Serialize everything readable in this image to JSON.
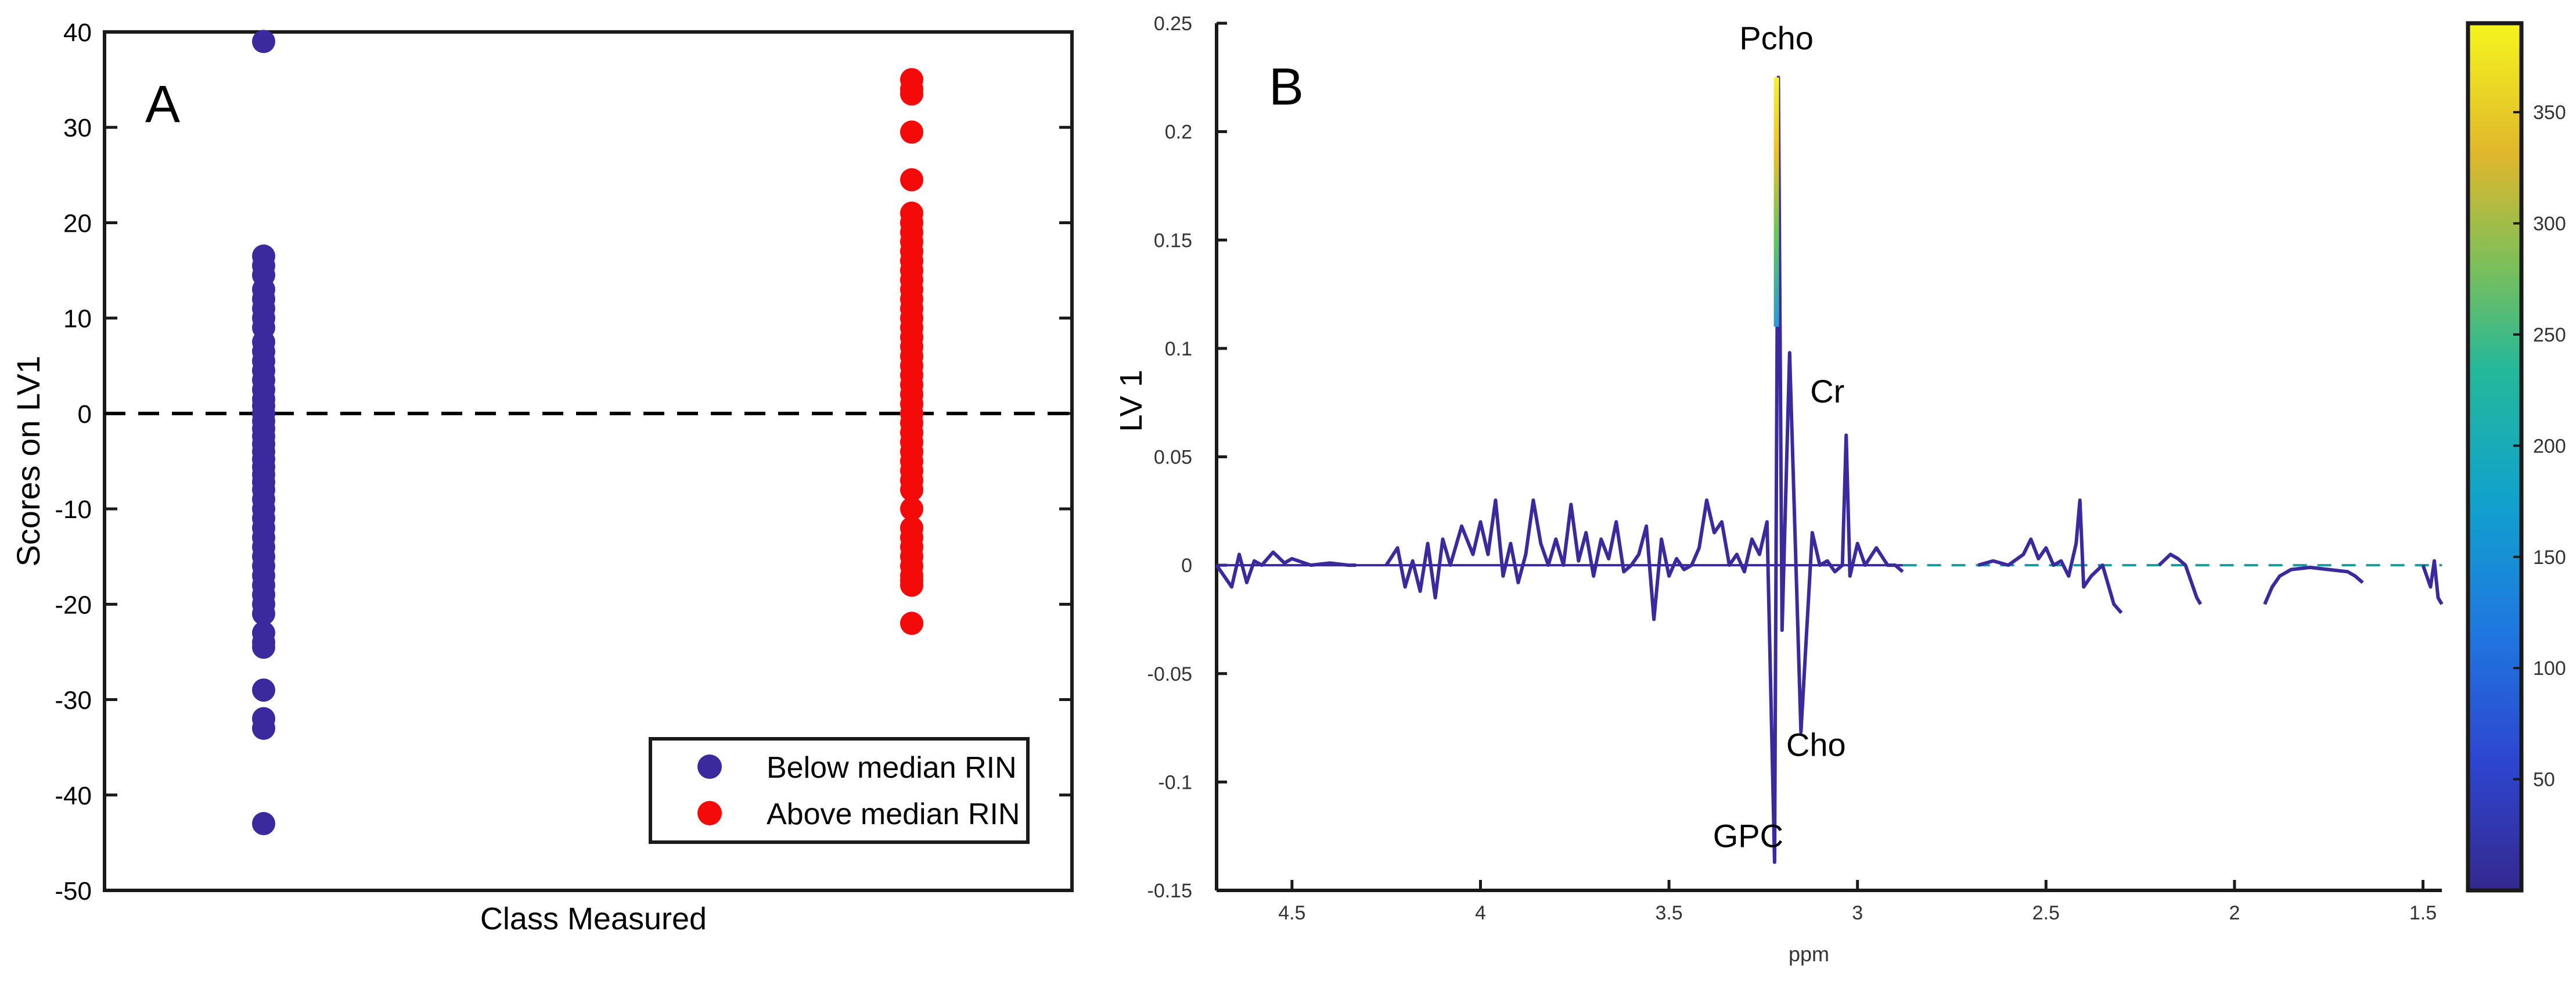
{
  "figure": {
    "panels": [
      "A",
      "B"
    ]
  },
  "chart_data": [
    {
      "type": "scatter",
      "panel_label": "A",
      "title": "",
      "xlabel": "Class Measured",
      "ylabel": "Scores on LV1",
      "ylim": [
        -50,
        40
      ],
      "yticks": [
        40,
        30,
        20,
        10,
        0,
        -10,
        -20,
        -30,
        -40,
        -50
      ],
      "xticks": [],
      "reference_line": {
        "y": 0,
        "style": "dashed"
      },
      "legend_position": "bottom-right",
      "series": [
        {
          "name": "Below median RIN",
          "color": "#3a2a9e",
          "x_category": 1,
          "values": [
            39,
            16.5,
            15.5,
            14.5,
            13,
            12,
            11,
            10,
            9,
            7.5,
            6.5,
            5.5,
            4.5,
            3.5,
            2.5,
            1.5,
            0.8,
            0,
            -0.8,
            -1.6,
            -2.4,
            -3.2,
            -4,
            -4.8,
            -5.6,
            -6.4,
            -7.2,
            -8,
            -9,
            -10,
            -11,
            -12,
            -13,
            -14,
            -15,
            -16,
            -17,
            -18,
            -19,
            -20,
            -21,
            -23,
            -24,
            -24.5,
            -29,
            -32,
            -33,
            -43
          ]
        },
        {
          "name": "Above median RIN",
          "color": "#f50a0a",
          "x_category": 2,
          "values": [
            35,
            34,
            33.5,
            29.5,
            24.5,
            21,
            20,
            19,
            18,
            17,
            16,
            15,
            14,
            13,
            12,
            11,
            10,
            9,
            8,
            7,
            6,
            5,
            4,
            3,
            2,
            1,
            0,
            -1,
            -2,
            -3,
            -4,
            -5,
            -6,
            -7,
            -8,
            -10,
            -12,
            -13,
            -14,
            -15,
            -16,
            -17,
            -17.5,
            -18,
            -22
          ]
        }
      ]
    },
    {
      "type": "line",
      "panel_label": "B",
      "title": "",
      "xlabel": "ppm",
      "ylabel": "LV 1",
      "xlim": [
        4.7,
        1.45
      ],
      "x_reversed": true,
      "ylim": [
        -0.15,
        0.25
      ],
      "xticks": [
        4.5,
        4,
        3.5,
        3,
        2.5,
        2,
        1.5
      ],
      "xtick_labels": [
        "4.5",
        "4",
        "3.5",
        "3",
        "2.5",
        "2",
        "1.5"
      ],
      "yticks": [
        0.25,
        0.2,
        0.15,
        0.1,
        0.05,
        0,
        -0.05,
        -0.1,
        -0.15
      ],
      "ytick_labels": [
        "0.25",
        "0.2",
        "0.15",
        "0.1",
        "0.05",
        "0",
        "-0.05",
        "-0.1",
        "-0.15"
      ],
      "line_color": "#3a2a9e",
      "baseline": {
        "y": 0,
        "colors": [
          "#3a2a9e",
          "#1a9a9a"
        ]
      },
      "series": [
        {
          "name": "seg1",
          "x": [
            4.7,
            4.66,
            4.64,
            4.62,
            4.6,
            4.58,
            4.55,
            4.52,
            4.5,
            4.45,
            4.4,
            4.35,
            4.33
          ],
          "y": [
            0.0,
            -0.01,
            0.005,
            -0.008,
            0.002,
            0.0,
            0.006,
            0.001,
            0.003,
            0.0,
            0.001,
            0.0,
            0.0
          ]
        },
        {
          "name": "seg2",
          "x": [
            4.25,
            4.22,
            4.2,
            4.18,
            4.16,
            4.14,
            4.12,
            4.1,
            4.08,
            4.05,
            4.02,
            4.0,
            3.98,
            3.96,
            3.94,
            3.92,
            3.9,
            3.88,
            3.86,
            3.84,
            3.82,
            3.8,
            3.78,
            3.76,
            3.74,
            3.72,
            3.7,
            3.68,
            3.66,
            3.64,
            3.62,
            3.6,
            3.58,
            3.56,
            3.54,
            3.52,
            3.5,
            3.48,
            3.46,
            3.44,
            3.42,
            3.4,
            3.38,
            3.36,
            3.34,
            3.32,
            3.3,
            3.28,
            3.26,
            3.24,
            3.22,
            3.21,
            3.2,
            3.18,
            3.15,
            3.12,
            3.1,
            3.08,
            3.06,
            3.04,
            3.03,
            3.02,
            3.0,
            2.98,
            2.95,
            2.92,
            2.9,
            2.88
          ],
          "y": [
            0.0,
            0.008,
            -0.01,
            0.002,
            -0.012,
            0.01,
            -0.015,
            0.012,
            0.0,
            0.018,
            0.005,
            0.02,
            0.005,
            0.03,
            -0.005,
            0.01,
            -0.008,
            0.005,
            0.03,
            0.01,
            0.0,
            0.012,
            0.0,
            0.028,
            0.002,
            0.015,
            -0.005,
            0.012,
            0.003,
            0.02,
            -0.003,
            0.0,
            0.005,
            0.018,
            -0.025,
            0.012,
            -0.005,
            0.003,
            -0.002,
            0.0,
            0.008,
            0.03,
            0.015,
            0.02,
            0.0,
            0.005,
            -0.003,
            0.012,
            0.005,
            0.02,
            -0.137,
            0.225,
            -0.03,
            0.098,
            -0.077,
            0.015,
            0.0,
            0.002,
            -0.003,
            0.0,
            0.06,
            -0.005,
            0.01,
            0.0,
            0.008,
            0.0,
            0.0,
            -0.003
          ]
        },
        {
          "name": "seg3",
          "x": [
            2.68,
            2.64,
            2.6,
            2.56,
            2.54,
            2.52,
            2.5,
            2.48,
            2.46,
            2.44,
            2.42,
            2.41,
            2.4,
            2.38,
            2.35,
            2.32,
            2.3
          ],
          "y": [
            0.0,
            0.002,
            0.0,
            0.005,
            0.012,
            0.003,
            0.008,
            0.0,
            0.002,
            -0.005,
            0.01,
            0.03,
            -0.01,
            -0.005,
            0.0,
            -0.018,
            -0.022
          ]
        },
        {
          "name": "seg4",
          "x": [
            2.2,
            2.17,
            2.15,
            2.13,
            2.11,
            2.1,
            2.09
          ],
          "y": [
            0.0,
            0.005,
            0.003,
            0.0,
            -0.01,
            -0.015,
            -0.018
          ]
        },
        {
          "name": "seg5",
          "x": [
            1.92,
            1.9,
            1.88,
            1.85,
            1.8,
            1.75,
            1.7,
            1.68,
            1.66
          ],
          "y": [
            -0.018,
            -0.01,
            -0.005,
            -0.002,
            -0.001,
            -0.002,
            -0.003,
            -0.005,
            -0.008
          ]
        },
        {
          "name": "seg6",
          "x": [
            1.5,
            1.48,
            1.47,
            1.46,
            1.45
          ],
          "y": [
            0.0,
            -0.01,
            0.002,
            -0.015,
            -0.018
          ]
        }
      ],
      "peak_highlight": {
        "x": 3.215,
        "from": 0.11,
        "to": 0.225,
        "colors": [
          "#2a9ad8",
          "#5ec85a",
          "#f0c020",
          "#f5f520"
        ]
      },
      "annotations": [
        {
          "text": "Pcho",
          "x": 3.215,
          "y": 0.238
        },
        {
          "text": "Cr",
          "x": 3.08,
          "y": 0.075
        },
        {
          "text": "Cho",
          "x": 3.11,
          "y": -0.088
        },
        {
          "text": "GPC",
          "x": 3.29,
          "y": -0.13
        }
      ],
      "colorbar": {
        "ticks": [
          350,
          300,
          250,
          200,
          150,
          100,
          50
        ],
        "range": [
          0,
          390
        ],
        "colormap": "parula"
      }
    }
  ]
}
